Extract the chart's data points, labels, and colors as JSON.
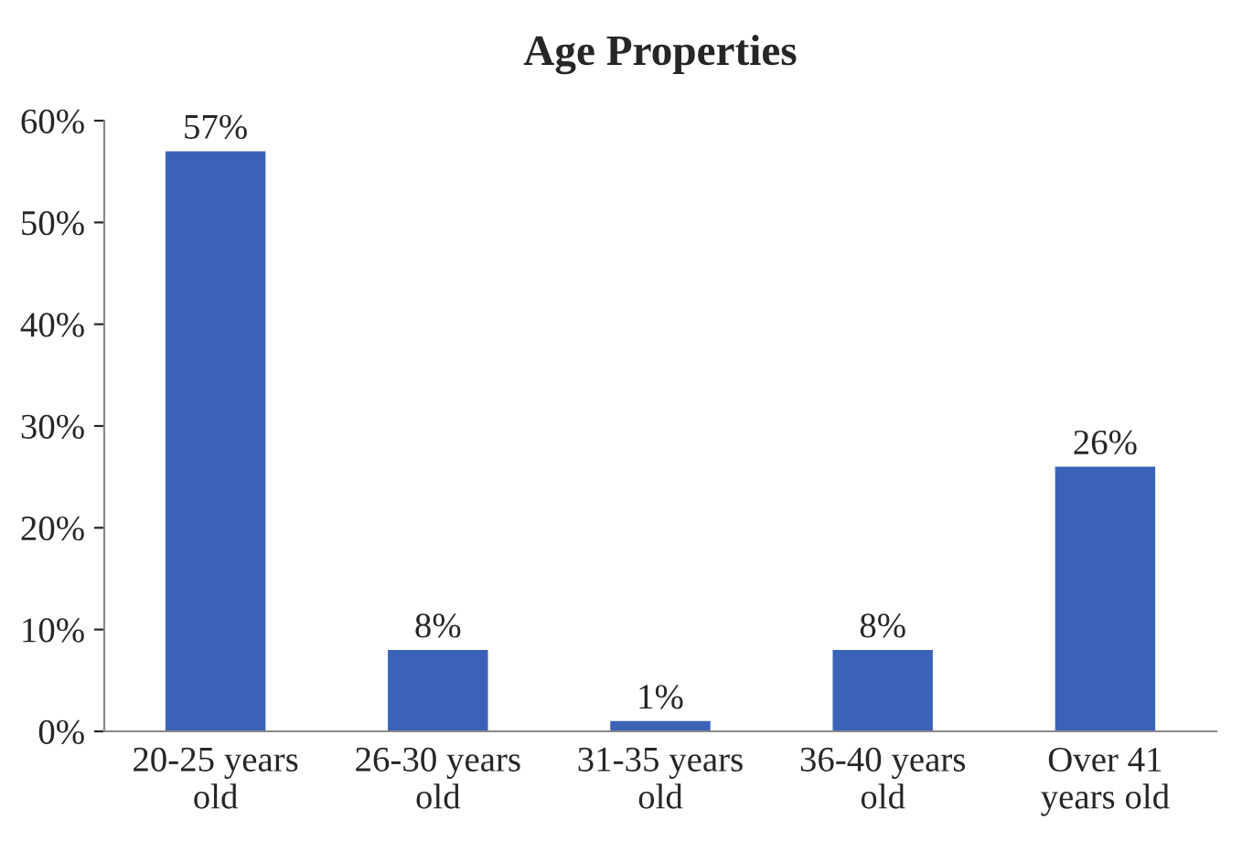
{
  "chart_data": {
    "type": "bar",
    "title": "Age Properties",
    "categories": [
      "20-25 years\nold",
      "26-30 years\nold",
      "31-35 years\nold",
      "36-40 years\nold",
      "Over 41\nyears old"
    ],
    "values": [
      57,
      8,
      1,
      8,
      26
    ],
    "value_labels": [
      "57%",
      "8%",
      "1%",
      "8%",
      "26%"
    ],
    "color": "#3a62b8",
    "ylim": [
      0,
      60
    ],
    "yticks": [
      {
        "value": 0,
        "label": "0%"
      },
      {
        "value": 10,
        "label": "10%"
      },
      {
        "value": 20,
        "label": "20%"
      },
      {
        "value": 30,
        "label": "30%"
      },
      {
        "value": 40,
        "label": "40%"
      },
      {
        "value": 50,
        "label": "50%"
      },
      {
        "value": 60,
        "label": "60%"
      }
    ],
    "grid": false,
    "legend": false
  }
}
